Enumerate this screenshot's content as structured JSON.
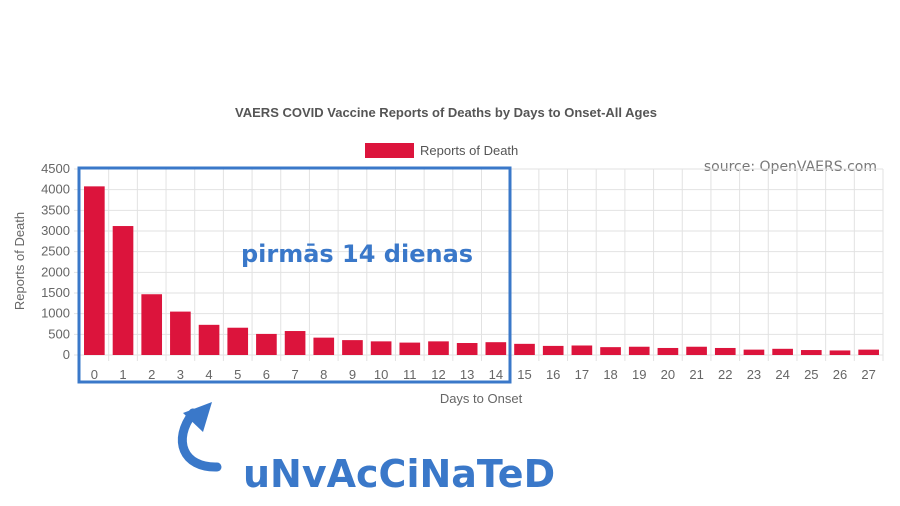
{
  "chart_data": {
    "type": "bar",
    "title": "VAERS COVID Vaccine Reports of Deaths by Days to Onset-All Ages",
    "xlabel": "Days to Onset",
    "ylabel": "Reports of Death",
    "ylim": [
      0,
      4500
    ],
    "yticks": [
      0,
      500,
      1000,
      1500,
      2000,
      2500,
      3000,
      3500,
      4000,
      4500
    ],
    "grid": true,
    "legend_position": "top-center",
    "bar_color": "#dc143c",
    "categories": [
      "0",
      "1",
      "2",
      "3",
      "4",
      "5",
      "6",
      "7",
      "8",
      "9",
      "10",
      "11",
      "12",
      "13",
      "14",
      "15",
      "16",
      "17",
      "18",
      "19",
      "20",
      "21",
      "22",
      "23",
      "24",
      "25",
      "26",
      "27"
    ],
    "series": [
      {
        "name": "Reports of Death",
        "values": [
          4080,
          3120,
          1470,
          1050,
          730,
          660,
          510,
          580,
          420,
          360,
          330,
          300,
          330,
          290,
          310,
          270,
          220,
          230,
          190,
          200,
          170,
          200,
          170,
          130,
          150,
          120,
          110,
          130
        ]
      }
    ]
  },
  "source_label": "source: OpenVAERS.com",
  "annotation": {
    "box_label": "pirmās 14 dienas",
    "bottom_label": "uNvAcCiNaTeD",
    "color": "#3a78c9"
  }
}
